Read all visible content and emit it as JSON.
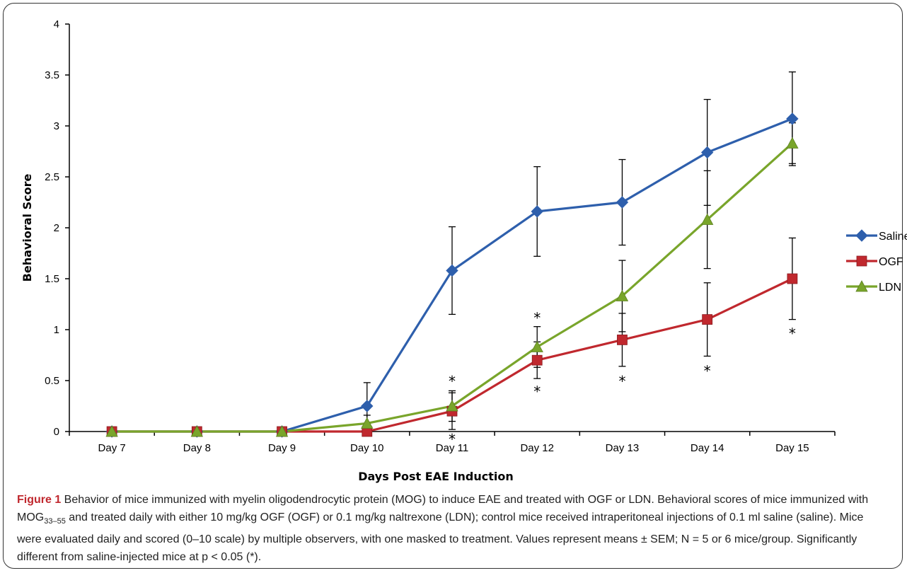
{
  "chart_data": {
    "type": "line",
    "categories": [
      "Day 7",
      "Day 8",
      "Day 9",
      "Day 10",
      "Day 11",
      "Day 12",
      "Day 13",
      "Day 14",
      "Day 15"
    ],
    "xlabel": "Days Post EAE Induction",
    "ylabel": "Behavioral Score",
    "ylim": [
      0,
      4
    ],
    "yticks": [
      "0",
      "0.5",
      "1",
      "1.5",
      "2",
      "2.5",
      "3",
      "3.5",
      "4"
    ],
    "grid": false,
    "legend_position": "right",
    "series": [
      {
        "name": "Saline",
        "color": "#2e5fac",
        "marker": "diamond",
        "values": [
          0,
          0,
          0,
          0.25,
          1.58,
          2.16,
          2.25,
          2.74,
          3.07
        ],
        "errors": [
          0,
          0,
          0,
          0.23,
          0.43,
          0.44,
          0.42,
          0.52,
          0.46
        ]
      },
      {
        "name": "OGF",
        "color": "#c0282e",
        "marker": "square",
        "values": [
          0,
          0,
          0,
          0,
          0.2,
          0.7,
          0.9,
          1.1,
          1.5
        ],
        "errors": [
          0,
          0,
          0,
          0,
          0.18,
          0.18,
          0.26,
          0.36,
          0.4
        ]
      },
      {
        "name": "LDN",
        "color": "#79a52b",
        "marker": "triangle",
        "values": [
          0,
          0,
          0,
          0.08,
          0.25,
          0.83,
          1.33,
          2.08,
          2.83
        ],
        "errors": [
          0,
          0,
          0,
          0.08,
          0.15,
          0.2,
          0.35,
          0.48,
          0.2
        ]
      }
    ],
    "significance": [
      {
        "x": "Day 11",
        "y": 0.5,
        "label": "*"
      },
      {
        "x": "Day 11",
        "y": -0.07,
        "label": "*"
      },
      {
        "x": "Day 12",
        "y": 1.12,
        "label": "*"
      },
      {
        "x": "Day 12",
        "y": 0.4,
        "label": "*"
      },
      {
        "x": "Day 13",
        "y": 0.5,
        "label": "*"
      },
      {
        "x": "Day 14",
        "y": 0.6,
        "label": "*"
      },
      {
        "x": "Day 15",
        "y": 0.97,
        "label": "*"
      }
    ]
  },
  "caption": {
    "label": "Figure 1",
    "text_1": " Behavior of mice immunized with myelin oligodendrocytic protein (MOG) to induce EAE and treated with OGF or LDN. Behavioral scores of mice immunized with MOG",
    "subscript": "33–55",
    "text_2": " and treated daily with either 10 mg/kg OGF (OGF) or 0.1 mg/kg naltrexone (LDN); control mice received intraperitoneal injections of 0.1 ml saline (saline). Mice were evaluated daily and scored (0–10 scale) by multiple observers, with one masked to treatment. Values represent means ± SEM; N = 5 or 6 mice/group. Significantly different from saline-injected mice at p < 0.05 (*)."
  }
}
